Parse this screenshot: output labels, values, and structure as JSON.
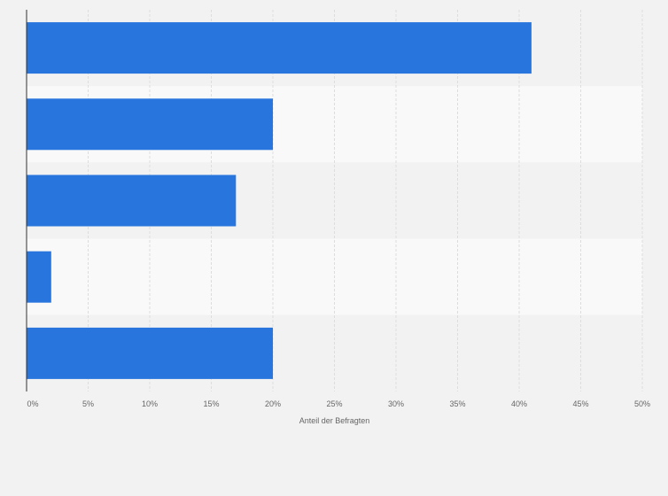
{
  "chart_data": {
    "type": "bar",
    "orientation": "horizontal",
    "categories": [
      "",
      "",
      "",
      "",
      ""
    ],
    "values": [
      41,
      20,
      17,
      2,
      20
    ],
    "title": "",
    "xlabel": "Anteil der Befragten",
    "ylabel": "",
    "xlim": [
      0,
      50
    ],
    "x_ticks": [
      0,
      5,
      10,
      15,
      20,
      25,
      30,
      35,
      40,
      45,
      50
    ],
    "x_tick_labels": [
      "0%",
      "5%",
      "10%",
      "15%",
      "20%",
      "25%",
      "30%",
      "35%",
      "40%",
      "45%",
      "50%"
    ],
    "grid": true,
    "legend": "none",
    "colors": {
      "bar": "#2876dd",
      "band_light": "#f9f9f9",
      "band_dark": "#f2f2f2",
      "grid": "#dddddd",
      "axis": "#333333",
      "text": "#666666"
    }
  }
}
